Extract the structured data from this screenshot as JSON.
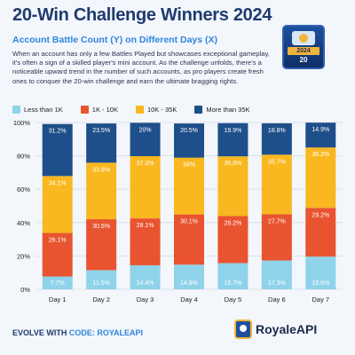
{
  "header": {
    "title": "20-Win Challenge Winners 2024",
    "subtitle": "Account Battle Count (Y) on Different Days (X)",
    "description": "When an account has only a few Battles Played but showcases exceptional gameplay, it's often a sign of a skilled player's mini account. As the challenge unfolds, there's a noticeable upward trend in the number of such accounts, as pro players create fresh ones to conquer the 20-win challenge and earn the ultimate bragging rights."
  },
  "badge": {
    "year": "2024",
    "number": "20"
  },
  "chart_data": {
    "type": "bar",
    "stacked": true,
    "categories": [
      "Day 1",
      "Day 2",
      "Day 3",
      "Day 4",
      "Day 5",
      "Day 6",
      "Day 7"
    ],
    "series": [
      {
        "name": "Less than 1K",
        "color": "#8fd3ea",
        "values": [
          7.7,
          11.5,
          14.4,
          14.8,
          15.7,
          17.3,
          19.6
        ],
        "labels": [
          "7.7%",
          "11.5%",
          "14.4%",
          "14.8%",
          "15.7%",
          "17.3%",
          "19.6%"
        ],
        "label_color": "#ffffff"
      },
      {
        "name": "1K - 10K",
        "color": "#e8542f",
        "values": [
          26.1,
          30.5,
          28.1,
          30.1,
          28.2,
          27.7,
          29.2
        ],
        "labels": [
          "26.1%",
          "30.5%",
          "28.1%",
          "30.1%",
          "28.2%",
          "27.7%",
          "29.2%"
        ],
        "label_color": "#ffffff"
      },
      {
        "name": "10K - 35K",
        "color": "#f9b820",
        "values": [
          34.1,
          33.9,
          37.3,
          34,
          35.8,
          35.7,
          36.2
        ],
        "labels": [
          "34.1%",
          "33.9%",
          "37.3%",
          "34%",
          "35.8%",
          "35.7%",
          "36.2%"
        ],
        "label_color": "#ffffff"
      },
      {
        "name": "More than 35K",
        "color": "#1f4f8a",
        "values": [
          31.2,
          23.5,
          20,
          20.5,
          19.9,
          18.8,
          14.9
        ],
        "labels": [
          "31.2%",
          "23.5%",
          "20%",
          "20.5%",
          "19.9%",
          "18.8%",
          "14.9%"
        ],
        "label_color": "#ffffff"
      }
    ],
    "ylim": [
      0,
      100
    ],
    "yticks": [
      "0%",
      "20%",
      "40%",
      "60%",
      "80%",
      "100%"
    ],
    "grid": true,
    "legend": "top"
  },
  "footer": {
    "prefix": "EVOLVE WITH ",
    "code": "CODE: ROYALEAPI",
    "brand": "RoyaleAPI"
  }
}
